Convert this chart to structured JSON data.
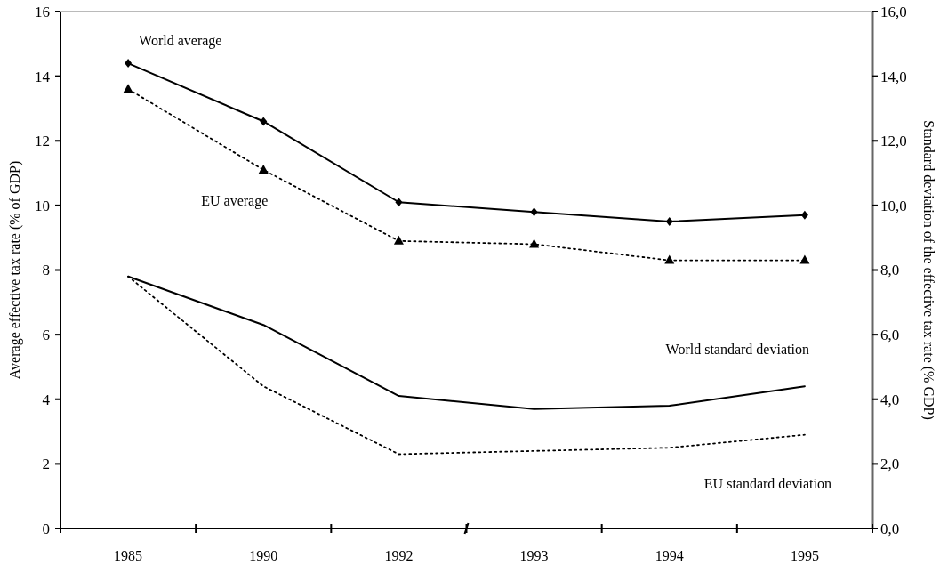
{
  "chart_data": {
    "type": "line",
    "categories": [
      "1985",
      "1990",
      "1992",
      "1993",
      "1994",
      "1995"
    ],
    "ylabel": "Average effective tax rate (% of GDP)",
    "y2label": "Standard deviation of the effective tax rate (% GDP)",
    "ylim": [
      0,
      16
    ],
    "yticks": [
      0,
      2,
      4,
      6,
      8,
      10,
      12,
      14,
      16
    ],
    "y2lim": [
      0,
      16
    ],
    "y2ticks": [
      {
        "value": 0,
        "label": "0,0"
      },
      {
        "value": 2,
        "label": "2,0"
      },
      {
        "value": 4,
        "label": "4,0"
      },
      {
        "value": 6,
        "label": "6,0"
      },
      {
        "value": 8,
        "label": "8,0"
      },
      {
        "value": 10,
        "label": "10,0"
      },
      {
        "value": 12,
        "label": "12,0"
      },
      {
        "value": 14,
        "label": "14,0"
      },
      {
        "value": 16,
        "label": "16,0"
      }
    ],
    "grid": false,
    "series": [
      {
        "name": "World average",
        "color": "#000000",
        "line_style": "solid",
        "marker": "diamond",
        "values": [
          14.4,
          12.6,
          10.1,
          9.8,
          9.5,
          9.7
        ]
      },
      {
        "name": "EU average",
        "color": "#000000",
        "line_style": "dotted",
        "marker": "triangle",
        "values": [
          13.6,
          11.1,
          8.9,
          8.8,
          8.3,
          8.3
        ]
      },
      {
        "name": "World standard deviation",
        "color": "#000000",
        "line_style": "solid",
        "marker": "none",
        "axis": "y2",
        "values": [
          7.8,
          6.3,
          4.1,
          3.7,
          3.8,
          4.4
        ]
      },
      {
        "name": "EU standard deviation",
        "color": "#000000",
        "line_style": "dotted",
        "marker": "none",
        "axis": "y2",
        "values": [
          7.8,
          4.4,
          2.3,
          2.4,
          2.5,
          2.9
        ]
      }
    ]
  }
}
